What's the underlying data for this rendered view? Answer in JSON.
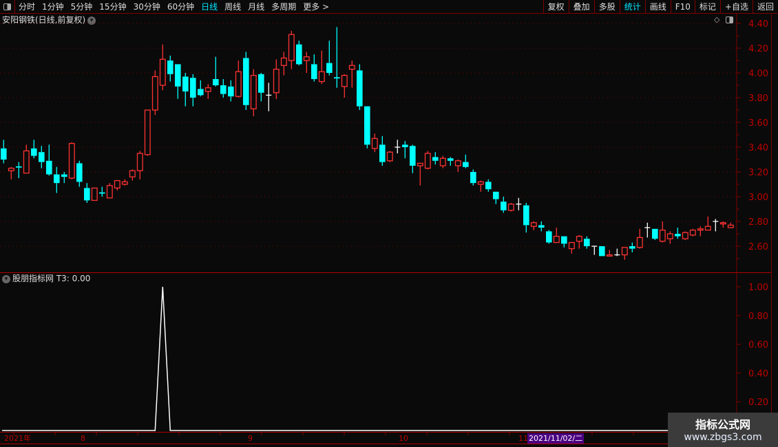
{
  "toolbar": {
    "periods": [
      "分时",
      "1分钟",
      "5分钟",
      "15分钟",
      "30分钟",
      "60分钟",
      "日线",
      "周线",
      "月线",
      "多周期",
      "更多 >"
    ],
    "active_period": "日线",
    "right_buttons": [
      "复权",
      "叠加",
      "多股",
      "统计",
      "画线",
      "F10",
      "标记",
      "+自选",
      "返回"
    ],
    "active_right": "统计"
  },
  "stock_title": "安阳钢铁(日线,前复权)",
  "indicator_title": "股朋指标网",
  "indicator_value": "T3: 0.00",
  "date_axis": {
    "year": "2021年",
    "months": [
      "8",
      "9",
      "10",
      "11"
    ],
    "cursor_date": "2021/11/02/二"
  },
  "watermark": {
    "line1": "指标公式网",
    "line2": "www.zbgs3.com"
  },
  "colors": {
    "up": "#ff3232",
    "down": "#00ffff",
    "doji": "#ffffff",
    "axis": "#c00000",
    "grid": "#800000",
    "background": "#0a0a0a"
  },
  "icons": {
    "sidebar_toggle": "panel-toggle-icon",
    "dropdown": "chevron-down-icon",
    "diamond": "diamond-icon"
  },
  "chart_data": [
    {
      "type": "candlestick",
      "title": "安阳钢铁(日线,前复权)",
      "ylim": [
        2.5,
        4.4
      ],
      "yticks": [
        "4.40",
        "4.20",
        "4.00",
        "3.80",
        "3.60",
        "3.40",
        "3.20",
        "3.00",
        "2.80",
        "2.60"
      ],
      "ohlc": [
        [
          3.39,
          3.46,
          3.27,
          3.3
        ],
        [
          3.21,
          3.24,
          3.14,
          3.23
        ],
        [
          3.245,
          3.28,
          3.15,
          3.235
        ],
        [
          3.19,
          3.42,
          3.19,
          3.37
        ],
        [
          3.39,
          3.46,
          3.31,
          3.33
        ],
        [
          3.36,
          3.41,
          3.23,
          3.28
        ],
        [
          3.29,
          3.42,
          3.17,
          3.18
        ],
        [
          3.18,
          3.24,
          3.03,
          3.11
        ],
        [
          3.18,
          3.2,
          3.11,
          3.16
        ],
        [
          3.15,
          3.44,
          3.14,
          3.43
        ],
        [
          3.27,
          3.29,
          3.08,
          3.12
        ],
        [
          3.07,
          3.11,
          2.95,
          2.97
        ],
        [
          2.97,
          3.07,
          2.97,
          3.07
        ],
        [
          3.035,
          3.08,
          3.0,
          3.025
        ],
        [
          2.99,
          3.11,
          2.99,
          3.09
        ],
        [
          3.07,
          3.13,
          3.05,
          3.13
        ],
        [
          3.1,
          3.14,
          3.09,
          3.12
        ],
        [
          3.16,
          3.22,
          3.13,
          3.21
        ],
        [
          3.21,
          3.37,
          3.14,
          3.35
        ],
        [
          3.34,
          3.7,
          3.33,
          3.7
        ],
        [
          3.7,
          4.02,
          3.66,
          3.97
        ],
        [
          3.9,
          4.23,
          3.86,
          4.11
        ],
        [
          4.1,
          4.14,
          3.93,
          3.99
        ],
        [
          4.07,
          4.07,
          3.79,
          3.89
        ],
        [
          3.97,
          4.0,
          3.73,
          3.85
        ],
        [
          3.96,
          3.99,
          3.73,
          3.8
        ],
        [
          3.87,
          3.94,
          3.81,
          3.82
        ],
        [
          3.85,
          3.91,
          3.79,
          3.88
        ],
        [
          3.95,
          4.13,
          3.89,
          3.9
        ],
        [
          3.9,
          3.95,
          3.8,
          3.83
        ],
        [
          3.89,
          3.94,
          3.77,
          3.81
        ],
        [
          3.81,
          4.1,
          3.8,
          4.01
        ],
        [
          4.12,
          4.17,
          3.7,
          3.74
        ],
        [
          3.71,
          4.03,
          3.65,
          3.98
        ],
        [
          3.99,
          4.0,
          3.77,
          3.84
        ],
        [
          3.82,
          3.92,
          3.69,
          3.82
        ],
        [
          3.84,
          4.11,
          3.79,
          4.03
        ],
        [
          4.06,
          4.17,
          3.98,
          4.12
        ],
        [
          4.1,
          4.34,
          4.03,
          4.31
        ],
        [
          4.23,
          4.26,
          4.06,
          4.07
        ],
        [
          4.1,
          4.17,
          4.0,
          4.13
        ],
        [
          4.07,
          4.15,
          3.93,
          3.95
        ],
        [
          3.93,
          4.18,
          3.91,
          4.01
        ],
        [
          4.08,
          4.26,
          3.98,
          4.0
        ],
        [
          3.965,
          4.37,
          3.88,
          3.955
        ],
        [
          3.89,
          3.99,
          3.8,
          3.98
        ],
        [
          4.03,
          4.1,
          3.88,
          4.06
        ],
        [
          4.02,
          4.07,
          3.7,
          3.73
        ],
        [
          3.73,
          3.73,
          3.39,
          3.42
        ],
        [
          3.39,
          3.51,
          3.36,
          3.47
        ],
        [
          3.42,
          3.49,
          3.25,
          3.28
        ],
        [
          3.29,
          3.37,
          3.28,
          3.36
        ],
        [
          3.4,
          3.46,
          3.35,
          3.4
        ],
        [
          3.42,
          3.45,
          3.31,
          3.4
        ],
        [
          3.41,
          3.42,
          3.19,
          3.25
        ],
        [
          3.25,
          3.27,
          3.09,
          3.27
        ],
        [
          3.23,
          3.37,
          3.22,
          3.35
        ],
        [
          3.32,
          3.36,
          3.26,
          3.29
        ],
        [
          3.25,
          3.33,
          3.23,
          3.31
        ],
        [
          3.31,
          3.32,
          3.25,
          3.29
        ],
        [
          3.25,
          3.3,
          3.2,
          3.29
        ],
        [
          3.28,
          3.34,
          3.23,
          3.24
        ],
        [
          3.2,
          3.22,
          3.09,
          3.11
        ],
        [
          3.1,
          3.13,
          3.04,
          3.12
        ],
        [
          3.12,
          3.14,
          3.04,
          3.06
        ],
        [
          3.04,
          3.04,
          2.94,
          2.98
        ],
        [
          2.96,
          3.0,
          2.87,
          2.89
        ],
        [
          2.89,
          2.95,
          2.88,
          2.94
        ],
        [
          2.94,
          2.99,
          2.89,
          2.94
        ],
        [
          2.93,
          2.95,
          2.71,
          2.77
        ],
        [
          2.76,
          2.8,
          2.73,
          2.79
        ],
        [
          2.77,
          2.8,
          2.72,
          2.75
        ],
        [
          2.72,
          2.73,
          2.62,
          2.63
        ],
        [
          2.63,
          2.75,
          2.63,
          2.68
        ],
        [
          2.68,
          2.68,
          2.59,
          2.62
        ],
        [
          2.58,
          2.63,
          2.54,
          2.63
        ],
        [
          2.64,
          2.69,
          2.58,
          2.68
        ],
        [
          2.66,
          2.68,
          2.58,
          2.6
        ],
        [
          2.6,
          2.6,
          2.53,
          2.6
        ],
        [
          2.6,
          2.6,
          2.52,
          2.52
        ],
        [
          2.52,
          2.57,
          2.52,
          2.53
        ],
        [
          2.53,
          2.58,
          2.52,
          2.53
        ],
        [
          2.53,
          2.59,
          2.49,
          2.59
        ],
        [
          2.6,
          2.63,
          2.55,
          2.58
        ],
        [
          2.59,
          2.74,
          2.58,
          2.67
        ],
        [
          2.75,
          2.79,
          2.67,
          2.75
        ],
        [
          2.74,
          2.74,
          2.65,
          2.66
        ],
        [
          2.64,
          2.8,
          2.63,
          2.73
        ],
        [
          2.66,
          2.72,
          2.62,
          2.7
        ],
        [
          2.7,
          2.75,
          2.66,
          2.68
        ],
        [
          2.66,
          2.72,
          2.65,
          2.71
        ],
        [
          2.69,
          2.74,
          2.68,
          2.73
        ],
        [
          2.73,
          2.76,
          2.68,
          2.74
        ],
        [
          2.73,
          2.84,
          2.73,
          2.76
        ],
        [
          2.8,
          2.82,
          2.72,
          2.8
        ],
        [
          2.78,
          2.8,
          2.75,
          2.79
        ],
        [
          2.75,
          2.79,
          2.75,
          2.77
        ]
      ]
    },
    {
      "type": "line",
      "title": "股朋指标网",
      "series": [
        {
          "name": "T3"
        }
      ],
      "ylim": [
        0,
        1.05
      ],
      "yticks": [
        "1.00",
        "0.80",
        "0.60",
        "0.40",
        "0.20"
      ],
      "spike_index": 21,
      "spike_value": 1.0,
      "baseline": 0
    }
  ]
}
